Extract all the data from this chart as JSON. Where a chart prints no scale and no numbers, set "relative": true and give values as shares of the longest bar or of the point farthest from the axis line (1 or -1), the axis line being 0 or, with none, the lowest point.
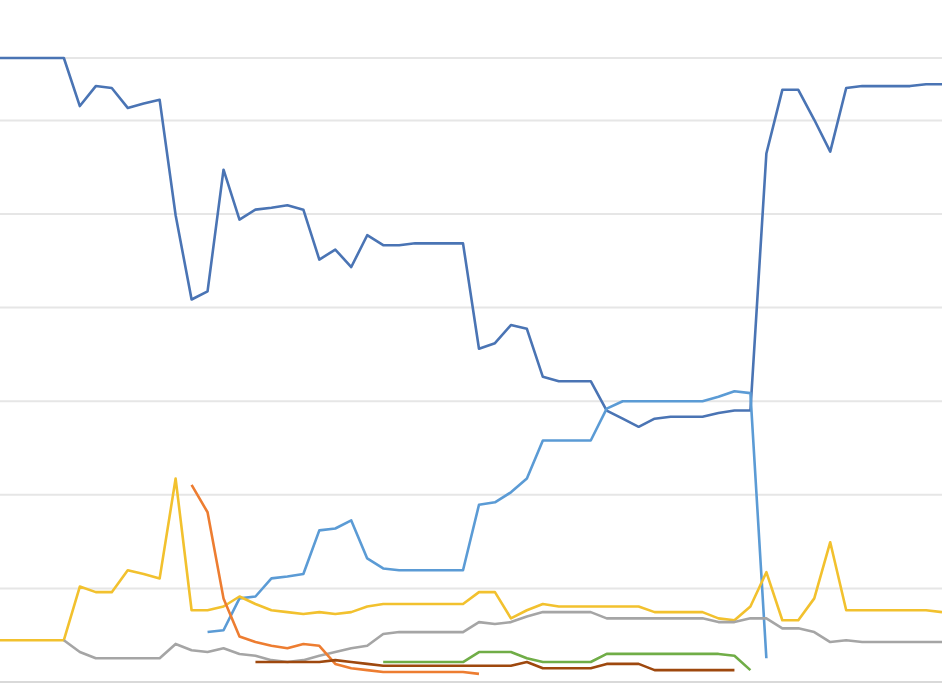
{
  "chart_data": {
    "type": "line",
    "relative": true,
    "grid": "y",
    "marker": "none",
    "line_style": "solid",
    "categories": [
      null,
      null,
      null,
      null,
      null,
      null,
      null,
      null,
      null,
      null,
      null,
      null,
      null,
      null,
      null,
      null,
      null,
      null,
      null,
      null,
      null,
      null,
      null,
      null,
      null,
      null,
      null,
      null,
      null,
      null,
      null,
      null,
      null,
      null,
      null,
      null,
      null,
      null,
      null,
      null,
      null,
      null,
      null,
      null,
      null,
      null,
      null,
      null,
      null,
      null,
      null,
      null,
      null,
      null,
      null,
      null,
      null,
      null,
      null,
      null
    ],
    "series": [
      {
        "color": "#4a74b4",
        "values": [
          1,
          1,
          1,
          1,
          1,
          0.923,
          0.955,
          0.952,
          0.92,
          0.927,
          0.933,
          0.748,
          0.613,
          0.626,
          0.821,
          0.741,
          0.757,
          0.76,
          0.764,
          0.757,
          0.677,
          0.693,
          0.665,
          0.716,
          0.7,
          0.7,
          0.703,
          0.703,
          0.703,
          0.703,
          0.534,
          0.543,
          0.572,
          0.566,
          0.489,
          0.482,
          0.482,
          0.482,
          0.435,
          0.422,
          0.409,
          0.422,
          0.425,
          0.425,
          0.425,
          0.431,
          0.435,
          0.435,
          0.847,
          0.949,
          0.949,
          0.901,
          0.85,
          0.952,
          0.955,
          0.955,
          0.955,
          0.955,
          0.958,
          0.958
        ]
      },
      {
        "color": "#5b9bd5",
        "values": [
          null,
          null,
          null,
          null,
          null,
          null,
          null,
          null,
          null,
          null,
          null,
          null,
          null,
          0.08,
          0.083,
          0.134,
          0.137,
          0.166,
          0.169,
          0.173,
          0.243,
          0.246,
          0.259,
          0.198,
          0.182,
          0.179,
          0.179,
          0.179,
          0.179,
          0.179,
          0.284,
          0.288,
          0.304,
          0.326,
          0.387,
          0.387,
          0.387,
          0.387,
          0.438,
          0.45,
          0.45,
          0.45,
          0.45,
          0.45,
          0.45,
          0.457,
          0.466,
          0.463,
          0.038,
          null,
          null,
          null,
          null,
          null,
          null,
          null,
          null,
          null,
          null,
          null
        ]
      },
      {
        "color": "#f2c12e",
        "values": [
          0.067,
          0.067,
          0.067,
          0.067,
          0.067,
          0.153,
          0.144,
          0.144,
          0.179,
          0.173,
          0.166,
          0.326,
          0.115,
          0.115,
          0.121,
          0.137,
          0.125,
          0.115,
          0.112,
          0.109,
          0.112,
          0.109,
          0.112,
          0.121,
          0.125,
          0.125,
          0.125,
          0.125,
          0.125,
          0.125,
          0.144,
          0.144,
          0.102,
          0.115,
          0.125,
          0.121,
          0.121,
          0.121,
          0.121,
          0.121,
          0.121,
          0.112,
          0.112,
          0.112,
          0.112,
          0.102,
          0.099,
          0.121,
          0.176,
          0.099,
          0.099,
          0.134,
          0.224,
          0.115,
          0.115,
          0.115,
          0.115,
          0.115,
          0.115,
          0.112
        ]
      },
      {
        "color": "#a5a5a5",
        "values": [
          null,
          null,
          null,
          null,
          0.067,
          0.048,
          0.038,
          0.038,
          0.038,
          0.038,
          0.038,
          0.061,
          0.051,
          0.048,
          0.054,
          0.045,
          0.042,
          0.035,
          0.032,
          0.035,
          0.042,
          0.048,
          0.054,
          0.058,
          0.077,
          0.08,
          0.08,
          0.08,
          0.08,
          0.08,
          0.096,
          0.093,
          0.096,
          0.105,
          0.112,
          0.112,
          0.112,
          0.112,
          0.102,
          0.102,
          0.102,
          0.102,
          0.102,
          0.102,
          0.102,
          0.096,
          0.096,
          0.102,
          0.102,
          0.086,
          0.086,
          0.08,
          0.064,
          0.067,
          0.064,
          0.064,
          0.064,
          0.064,
          0.064,
          0.064
        ]
      },
      {
        "color": "#ed7d31",
        "values": [
          null,
          null,
          null,
          null,
          null,
          null,
          null,
          null,
          null,
          null,
          null,
          null,
          0.316,
          0.272,
          0.134,
          0.073,
          0.064,
          0.058,
          0.054,
          0.061,
          0.058,
          0.029,
          0.022,
          0.019,
          0.016,
          0.016,
          0.016,
          0.016,
          0.016,
          0.016,
          0.013,
          null,
          null,
          null,
          null,
          null,
          null,
          null,
          null,
          null,
          null,
          null,
          null,
          null,
          null,
          null,
          null,
          null,
          null,
          null,
          null,
          null,
          null,
          null,
          null,
          null,
          null,
          null,
          null,
          null
        ]
      },
      {
        "color": "#70ad47",
        "values": [
          null,
          null,
          null,
          null,
          null,
          null,
          null,
          null,
          null,
          null,
          null,
          null,
          null,
          null,
          null,
          null,
          null,
          null,
          null,
          null,
          null,
          null,
          null,
          null,
          0.032,
          0.032,
          0.032,
          0.032,
          0.032,
          0.032,
          0.048,
          0.048,
          0.048,
          0.038,
          0.032,
          0.032,
          0.032,
          0.032,
          0.045,
          0.045,
          0.045,
          0.045,
          0.045,
          0.045,
          0.045,
          0.045,
          0.042,
          0.019,
          null,
          null,
          null,
          null,
          null,
          null,
          null,
          null,
          null,
          null,
          null,
          null
        ]
      },
      {
        "color": "#9e480e",
        "values": [
          null,
          null,
          null,
          null,
          null,
          null,
          null,
          null,
          null,
          null,
          null,
          null,
          null,
          null,
          null,
          null,
          0.032,
          0.032,
          0.032,
          0.032,
          0.032,
          0.035,
          0.032,
          0.029,
          0.026,
          0.026,
          0.026,
          0.026,
          0.026,
          0.026,
          0.026,
          0.026,
          0.026,
          0.032,
          0.022,
          0.022,
          0.022,
          0.022,
          0.029,
          0.029,
          0.029,
          0.019,
          0.019,
          0.019,
          0.019,
          0.019,
          0.019,
          null,
          null,
          null,
          null,
          null,
          null,
          null,
          null,
          null,
          null,
          null,
          null,
          null
        ]
      }
    ]
  }
}
